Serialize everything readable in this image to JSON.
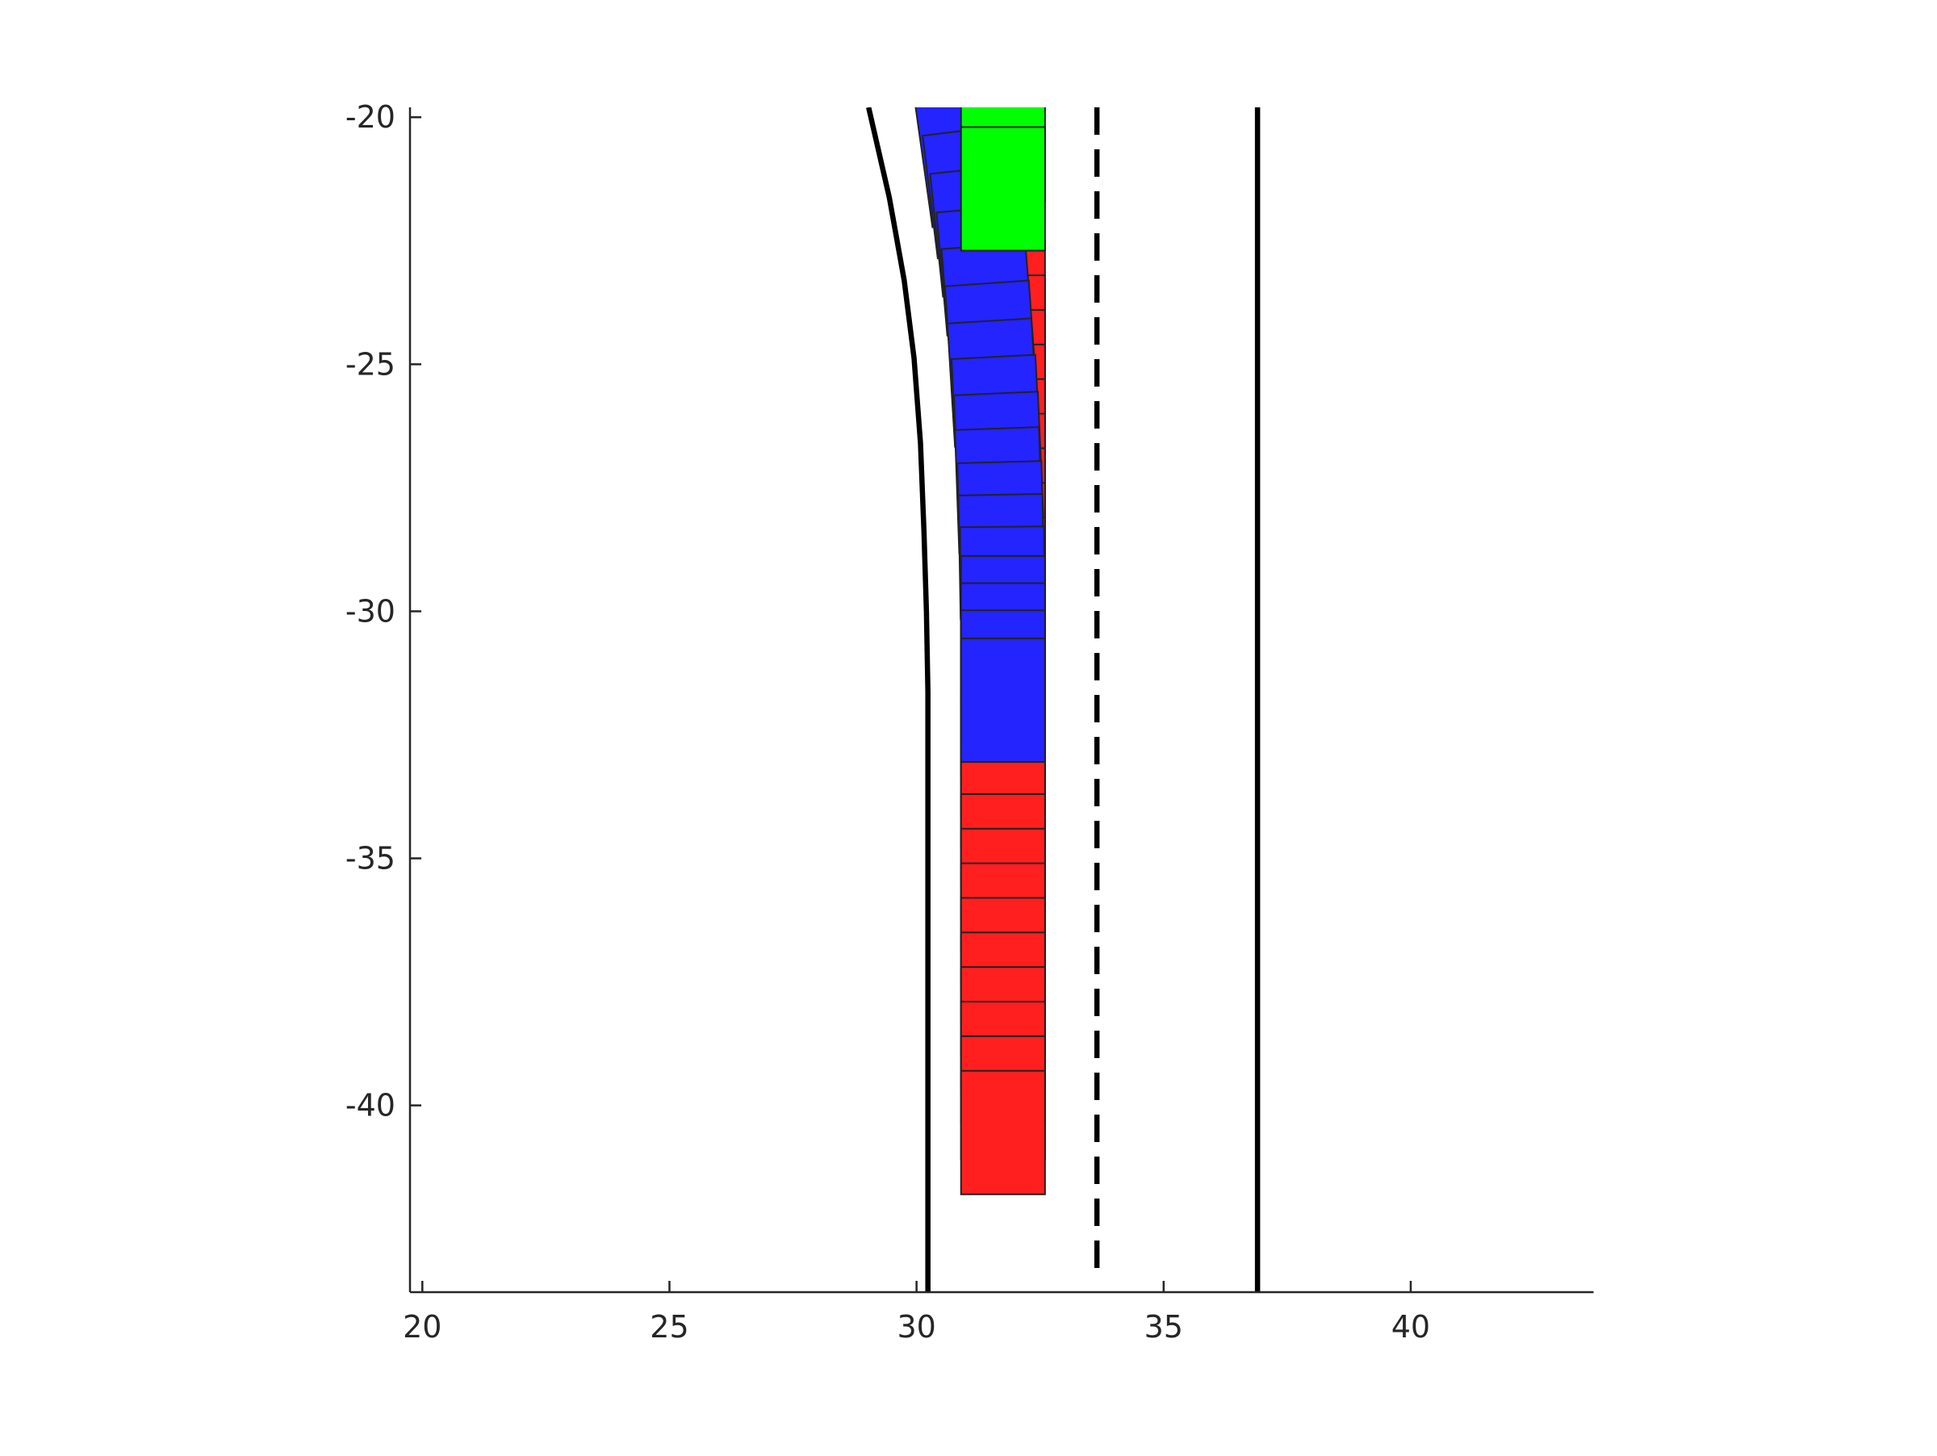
{
  "chart_data": {
    "type": "patch",
    "xlim": [
      19.75,
      43.7
    ],
    "ylim": [
      -43.78,
      -19.8
    ],
    "xticks": [
      20,
      25,
      30,
      35,
      40
    ],
    "yticks": [
      -20,
      -25,
      -30,
      -35,
      -40
    ],
    "lines": [
      {
        "style": "solid",
        "color": "#000000",
        "x": [
          29.03,
          29.45,
          29.75,
          29.95,
          30.08,
          30.15,
          30.2,
          30.23,
          30.23
        ],
        "y": [
          -19.8,
          -21.63,
          -23.3,
          -24.88,
          -26.6,
          -28.38,
          -30,
          -31.63,
          -43.78
        ]
      },
      {
        "style": "dashed",
        "color": "#000000",
        "x": [
          33.65,
          33.65
        ],
        "y": [
          -19.8,
          -43.3
        ]
      },
      {
        "style": "solid",
        "color": "#000000",
        "x": [
          36.9,
          36.9
        ],
        "y": [
          -19.8,
          -43.78
        ]
      }
    ],
    "vehicles": [
      {
        "color": "#ff1f1f",
        "length": 2.5,
        "width": 1.7,
        "x": [
          31.75,
          31.75,
          31.75,
          31.75,
          31.75,
          31.75,
          31.75,
          31.75,
          31.75,
          31.75,
          31.75,
          31.75,
          31.75,
          31.75,
          31.75,
          31.75,
          31.75,
          31.75,
          31.75,
          31.75,
          31.75,
          31.75,
          31.75,
          31.75,
          31.75
        ],
        "y": [
          -23.75,
          -24.45,
          -25.15,
          -25.85,
          -26.55,
          -27.25,
          -27.95,
          -28.65,
          -29.35,
          -30.05,
          -30.75,
          -31.45,
          -32.15,
          -32.85,
          -33.55,
          -34.25,
          -34.95,
          -35.65,
          -36.35,
          -37.05,
          -37.75,
          -38.45,
          -39.15,
          -39.85,
          -40.55
        ],
        "heading": [
          0,
          0,
          0,
          0,
          0,
          0,
          0,
          0,
          0,
          0,
          0,
          0,
          0,
          0,
          0,
          0,
          0,
          0,
          0,
          0,
          0,
          0,
          0,
          0,
          0
        ]
      },
      {
        "color": "#2424ff",
        "length": 2.5,
        "width": 1.7,
        "x": [
          30.99,
          31.12,
          31.25,
          31.36,
          31.45,
          31.51,
          31.55,
          31.62,
          31.66,
          31.67,
          31.71,
          31.72,
          31.74,
          31.75,
          31.75,
          31.75,
          31.75
        ],
        "y": [
          -20.87,
          -21.51,
          -22.3,
          -23.1,
          -23.85,
          -24.61,
          -25.37,
          -26.1,
          -26.84,
          -27.55,
          -28.23,
          -28.89,
          -29.54,
          -30.13,
          -30.68,
          -31.23,
          -31.8
        ],
        "heading": [
          8,
          7,
          6,
          5,
          4.5,
          4,
          3.5,
          3,
          2.5,
          2,
          1.5,
          1,
          0.5,
          0,
          0,
          0,
          0
        ]
      },
      {
        "color": "#00ff00",
        "length": 2.5,
        "width": 1.7,
        "x": [
          31.75,
          31.75
        ],
        "y": [
          -20.45,
          -21.45
        ],
        "heading": [
          0,
          0
        ]
      }
    ]
  }
}
